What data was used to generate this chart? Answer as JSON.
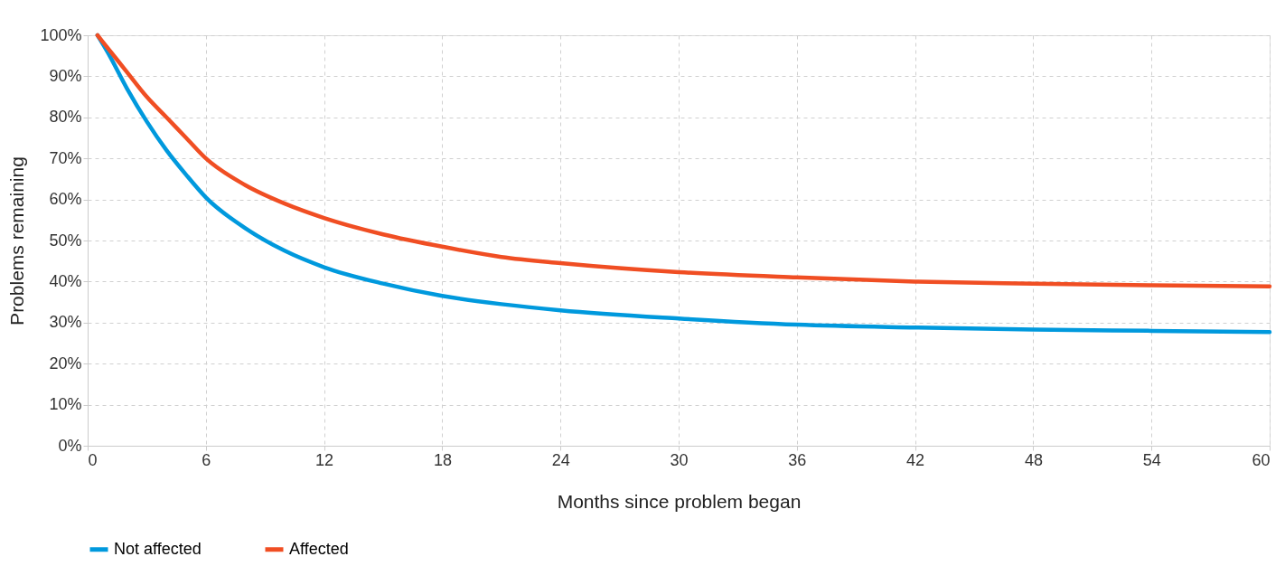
{
  "chart_data": {
    "type": "line",
    "xlabel": "Months since problem began",
    "ylabel": "Problems remaining",
    "x": [
      0.5,
      1,
      2,
      3,
      4,
      5,
      6,
      8,
      10,
      12,
      15,
      18,
      21,
      24,
      30,
      36,
      42,
      48,
      54,
      60
    ],
    "series": [
      {
        "name": "Not affected",
        "color": "#0099dd",
        "values": [
          100,
          96,
          87,
          79,
          72,
          66,
          60.5,
          53,
          47.5,
          43.5,
          39.5,
          36.5,
          34.5,
          33,
          31,
          29.5,
          28.8,
          28.3,
          28,
          27.7
        ]
      },
      {
        "name": "Affected",
        "color": "#f04e23",
        "values": [
          100,
          97,
          91,
          85,
          80,
          75,
          70,
          63.5,
          59,
          55.5,
          51.5,
          48.5,
          46,
          44.5,
          42.3,
          41,
          40,
          39.5,
          39.1,
          38.8
        ]
      }
    ],
    "xlim": [
      0,
      60
    ],
    "xticks": [
      0,
      6,
      12,
      18,
      24,
      30,
      36,
      42,
      48,
      54,
      60
    ],
    "ylim": [
      0,
      100
    ],
    "yticks": [
      {
        "value": 0,
        "label": "0%"
      },
      {
        "value": 10,
        "label": "10%"
      },
      {
        "value": 20,
        "label": "20%"
      },
      {
        "value": 30,
        "label": "30%"
      },
      {
        "value": 40,
        "label": "40%"
      },
      {
        "value": 50,
        "label": "50%"
      },
      {
        "value": 60,
        "label": "60%"
      },
      {
        "value": 70,
        "label": "70%"
      },
      {
        "value": 80,
        "label": "80%"
      },
      {
        "value": 90,
        "label": "90%"
      },
      {
        "value": 100,
        "label": "100%"
      }
    ],
    "grid": true,
    "legend": "bottom",
    "marker": "none",
    "line_style": "solid"
  }
}
